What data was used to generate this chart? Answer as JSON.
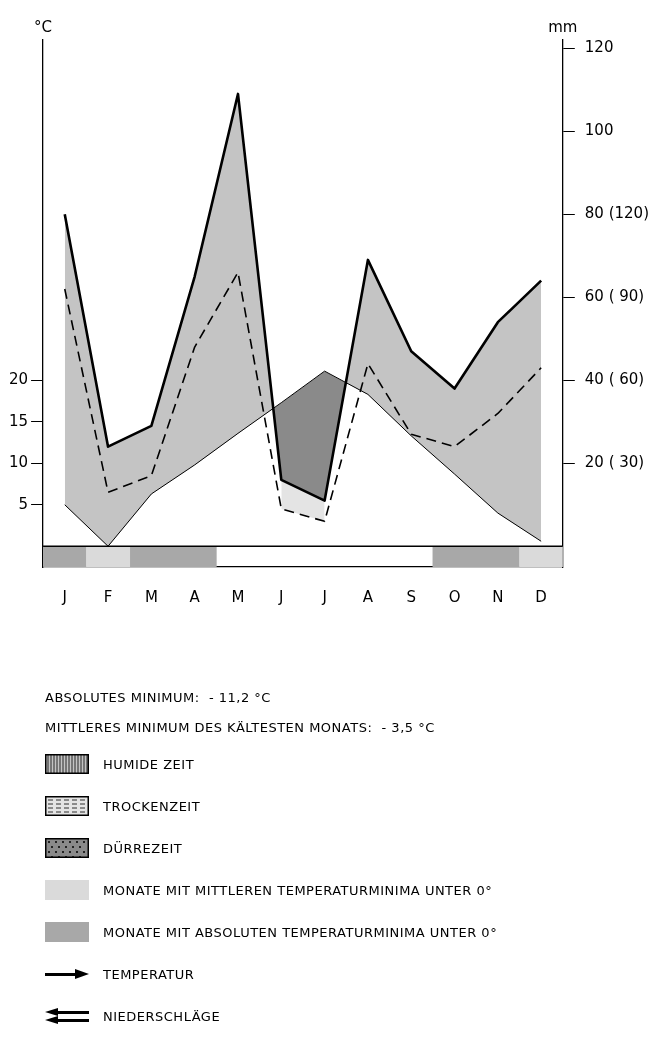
{
  "chart_data": {
    "type": "line",
    "categories": [
      "J",
      "F",
      "M",
      "A",
      "M",
      "J",
      "J",
      "A",
      "S",
      "O",
      "N",
      "D"
    ],
    "ylabel": "°C",
    "y2label": "mm",
    "ylim": [
      -2.5,
      61
    ],
    "yticks": [
      5,
      10,
      15,
      20
    ],
    "y2lim": [
      -5,
      122
    ],
    "y2ticks": [
      {
        "value": 20,
        "label": "20 ( 30)"
      },
      {
        "value": 40,
        "label": "40 ( 60)"
      },
      {
        "value": 60,
        "label": "60 ( 90)"
      },
      {
        "value": 80,
        "label": "80 (120)"
      },
      100,
      120
    ],
    "ref_lines": [
      {
        "axis": "y",
        "value": 0
      }
    ],
    "series": [
      {
        "name": "TEMPERATUR",
        "color": "#000000",
        "values": [
          5,
          0,
          6.3,
          9.8,
          13.6,
          17.3,
          21.1,
          18.3,
          13.3,
          8.7,
          4,
          0.6
        ]
      },
      {
        "name": "NIEDERSCHLÄGE",
        "color": "#000000",
        "axis": "y2",
        "values": [
          80,
          24,
          29,
          65,
          109,
          16,
          11,
          69,
          47,
          38,
          54,
          64
        ],
        "lower": [
          10,
          0,
          12.6,
          19.6,
          27.2,
          34.6,
          42.2,
          36.6,
          26.6,
          17.4,
          8,
          1.2
        ],
        "upper": [
          80,
          24,
          29,
          65,
          109,
          16,
          11,
          69,
          47,
          38,
          54,
          64
        ]
      },
      {
        "color": "#000000",
        "axis": "y2",
        "line_style": "dashed",
        "values": [
          62,
          13,
          17,
          48,
          66,
          9,
          6,
          44,
          27,
          24,
          32,
          43
        ],
        "lower": [
          null,
          null,
          null,
          null,
          null,
          9,
          6,
          null,
          null,
          null,
          null,
          null
        ],
        "upper": [
          null,
          null,
          null,
          null,
          null,
          16,
          11,
          null,
          null,
          null,
          null,
          null
        ]
      },
      {
        "type": "bar",
        "name": "MONATE MIT MITTLEREN TEMPERATURMINIMA UNTER 0°",
        "color": "#dadada",
        "values": [
          null,
          2.5,
          null,
          null,
          null,
          null,
          null,
          null,
          null,
          null,
          null,
          2.5
        ],
        "base": [
          null,
          -2.5,
          null,
          null,
          null,
          null,
          null,
          null,
          null,
          null,
          null,
          -2.5
        ]
      },
      {
        "type": "bar",
        "name": "MONATE MIT ABSOLUTEN TEMPERATURMINIMA UNTER 0°",
        "color": "#a8a8a8",
        "values": [
          2.5,
          null,
          2.5,
          2.5,
          null,
          null,
          null,
          null,
          null,
          2.5,
          2.5,
          null
        ],
        "base": [
          -2.5,
          null,
          -2.5,
          -2.5,
          null,
          null,
          null,
          null,
          null,
          -2.5,
          -2.5,
          null
        ]
      }
    ],
    "annotations": [
      "ABSOLUTES MINIMUM:  - 11,2 °C",
      "MITTLERES MINIMUM DES KÄLTESTEN MONATS:  - 3,5 °C",
      "HUMIDE ZEIT",
      "TROCKENZEIT",
      "DÜRREZEIT"
    ],
    "legend": "bottom",
    "marker": "none",
    "grid": false
  }
}
